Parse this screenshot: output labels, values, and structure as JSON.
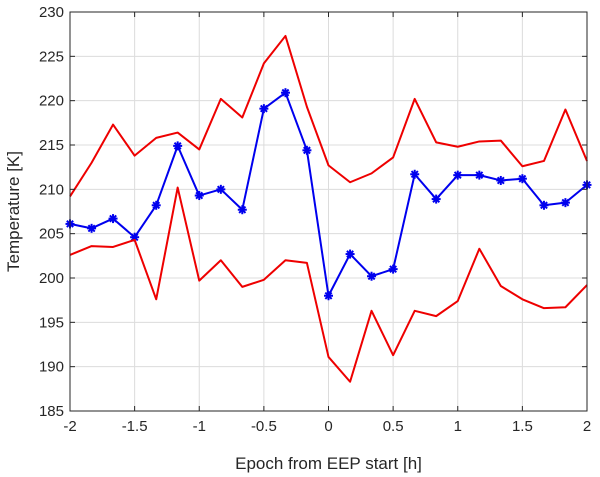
{
  "chart_data": {
    "type": "line",
    "title": "",
    "xlabel": "Epoch from EEP start [h]",
    "ylabel": "Temperature [K]",
    "xlim": [
      -2,
      2
    ],
    "ylim": [
      185,
      230
    ],
    "xticks": [
      -2,
      -1.5,
      -1,
      -0.5,
      0,
      0.5,
      1,
      1.5,
      2
    ],
    "xtick_labels": [
      "-2",
      "-1.5",
      "-1",
      "-0.5",
      "0",
      "0.5",
      "1",
      "1.5",
      "2"
    ],
    "yticks": [
      185,
      190,
      195,
      200,
      205,
      210,
      215,
      220,
      225,
      230
    ],
    "ytick_labels": [
      "185",
      "190",
      "195",
      "200",
      "205",
      "210",
      "215",
      "220",
      "225",
      "230"
    ],
    "grid": true,
    "x": [
      -2,
      -1.833,
      -1.667,
      -1.5,
      -1.333,
      -1.167,
      -1,
      -0.833,
      -0.667,
      -0.5,
      -0.333,
      -0.167,
      0,
      0.167,
      0.333,
      0.5,
      0.667,
      0.833,
      1,
      1.167,
      1.333,
      1.5,
      1.667,
      1.833,
      2
    ],
    "series": [
      {
        "color": "#ee0000",
        "marker": "none",
        "values": [
          209.2,
          213.0,
          217.3,
          213.8,
          215.8,
          216.4,
          214.5,
          220.2,
          218.1,
          224.2,
          227.3,
          219.3,
          212.7,
          210.8,
          211.8,
          213.6,
          220.2,
          215.3,
          214.8,
          215.4,
          215.5,
          212.6,
          213.2,
          219.0,
          213.2
        ]
      },
      {
        "color": "#0000ee",
        "marker": "asterisk",
        "values": [
          206.1,
          205.6,
          206.7,
          204.6,
          208.2,
          214.9,
          209.3,
          210.0,
          207.7,
          219.1,
          220.9,
          214.4,
          198.0,
          202.7,
          200.2,
          201.0,
          211.7,
          208.9,
          211.6,
          211.6,
          211.0,
          211.2,
          208.2,
          208.5,
          210.5
        ]
      },
      {
        "color": "#ee0000",
        "marker": "none",
        "values": [
          202.6,
          203.6,
          203.5,
          204.3,
          197.6,
          210.2,
          199.7,
          202.0,
          199.0,
          199.8,
          202.0,
          201.7,
          191.1,
          188.3,
          196.3,
          191.3,
          196.3,
          195.7,
          197.4,
          203.3,
          199.1,
          197.6,
          196.6,
          196.7,
          199.2
        ]
      }
    ]
  }
}
